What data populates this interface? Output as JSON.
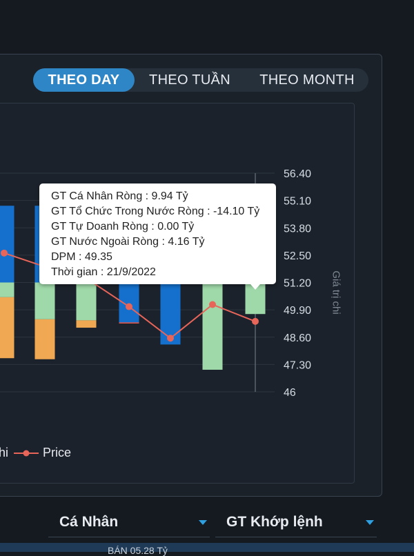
{
  "tabs": [
    {
      "label": "THEO DAY",
      "active": true
    },
    {
      "label": "THEO TUẦN",
      "active": false
    },
    {
      "label": "THEO MONTH",
      "active": false
    }
  ],
  "chart_data": {
    "type": "bar",
    "ylabel": "Giá trị chi",
    "ticks": [
      "56.40",
      "55.10",
      "53.80",
      "52.50",
      "51.20",
      "49.90",
      "48.60",
      "47.30",
      "46"
    ],
    "ylim": [
      46,
      56.4
    ],
    "colors": {
      "blue": "#1470cc",
      "green": "#9fd9a9",
      "orange": "#f0a852",
      "red": "#ef5a4d",
      "price_line": "#e8655a"
    },
    "bars": [
      {
        "segments": [
          {
            "from": 51.2,
            "to": 54.85,
            "color": "blue"
          },
          {
            "from": 51.2,
            "to": 50.5,
            "color": "green"
          },
          {
            "from": 50.5,
            "to": 47.6,
            "color": "orange"
          }
        ]
      },
      {
        "segments": [
          {
            "from": 51.2,
            "to": 54.85,
            "color": "blue"
          },
          {
            "from": 51.2,
            "to": 49.45,
            "color": "green"
          },
          {
            "from": 49.45,
            "to": 47.55,
            "color": "orange"
          }
        ]
      },
      {
        "segments": [
          {
            "from": 51.2,
            "to": 49.4,
            "color": "green"
          },
          {
            "from": 49.4,
            "to": 49.05,
            "color": "orange"
          }
        ]
      },
      {
        "segments": [
          {
            "from": 51.2,
            "to": 49.3,
            "color": "blue"
          },
          {
            "from": 49.3,
            "to": 49.25,
            "color": "red"
          }
        ]
      },
      {
        "segments": [
          {
            "from": 51.2,
            "to": 48.25,
            "color": "blue"
          }
        ]
      },
      {
        "segments": [
          {
            "from": 51.2,
            "to": 47.05,
            "color": "green"
          }
        ]
      },
      {
        "segments": [
          {
            "from": 51.2,
            "to": 49.7,
            "color": "green"
          }
        ]
      }
    ],
    "price": {
      "name": "Price",
      "values": [
        52.6,
        51.95,
        51.4,
        50.05,
        48.55,
        50.15,
        49.35
      ]
    },
    "legend": [
      "hi",
      "Price"
    ]
  },
  "tooltip": {
    "lines": [
      "GT Cá Nhân Ròng  : 9.94 Tỷ",
      "GT Tổ Chức Trong Nước Ròng : -14.10 Tỷ",
      "GT Tự Doanh Ròng : 0.00 Tỷ",
      "GT Nước Ngoài Ròng : 4.16 Tỷ",
      "DPM : 49.35",
      "Thời gian : 21/9/2022"
    ]
  },
  "filters": {
    "investor": "Cá Nhân",
    "value_type": "GT Khớp lệnh"
  },
  "footer": {
    "text": "BÁN 05.28 Tỷ"
  }
}
